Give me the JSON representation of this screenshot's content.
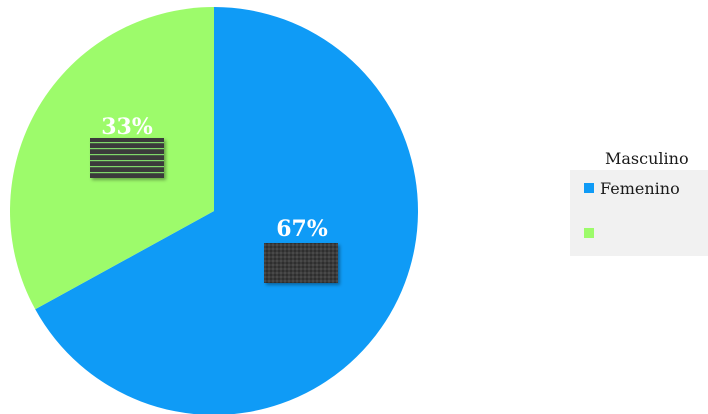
{
  "chart_data": {
    "type": "pie",
    "categories": [
      "Femenino",
      "Masculino"
    ],
    "values": [
      67,
      33
    ],
    "unit": "%",
    "data_labels": [
      "67%",
      "33%"
    ],
    "colors": [
      "#0f9bf6",
      "#9dfb6b"
    ],
    "legend": {
      "title": "Masculino",
      "entries": [
        "Femenino",
        ""
      ],
      "placement": "right"
    }
  }
}
